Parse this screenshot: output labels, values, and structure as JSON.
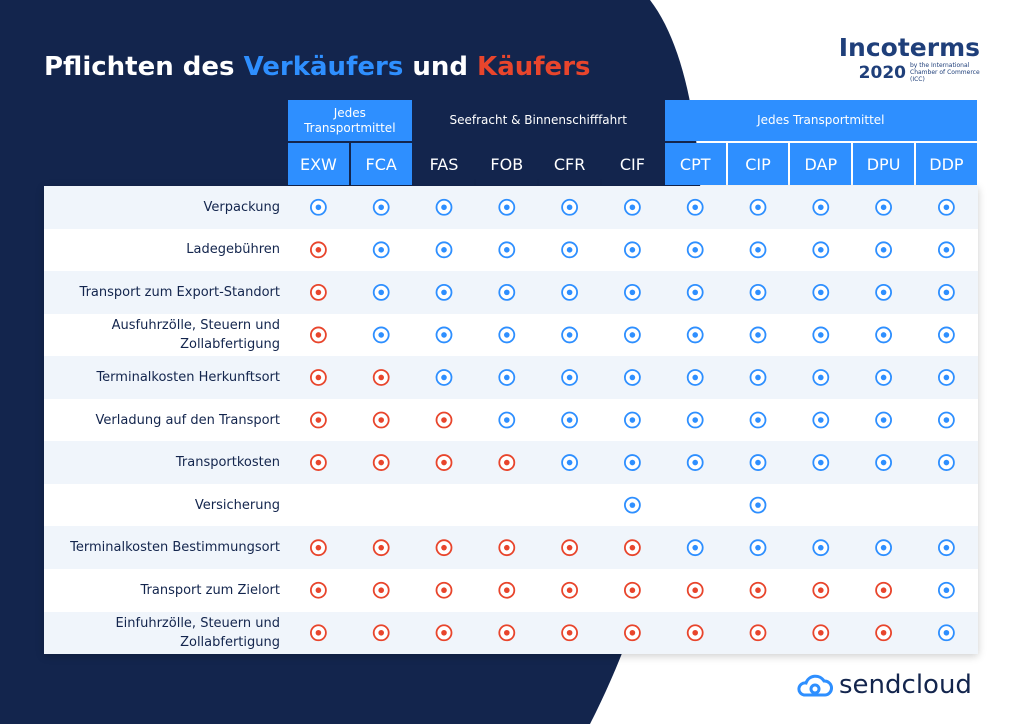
{
  "header": {
    "title": [
      {
        "text": "Pflichten des "
      },
      {
        "text": "Verkäufers",
        "color": "#2e8fff"
      },
      {
        "text": " und "
      },
      {
        "text": "Käufers",
        "color": "#e8452c"
      }
    ]
  },
  "logo": {
    "name": "Incoterms",
    "year": "2020",
    "subtitle": "by the International Chamber of Commerce (ICC)"
  },
  "table": {
    "seller_color": "#2e8fff",
    "buyer_color": "#e8452c",
    "groups": [
      {
        "label": "Jedes Transportmittel",
        "color": "#2e8fff",
        "columns": [
          "EXW",
          "FCA"
        ]
      },
      {
        "label": "Seefracht & Binnenschifffahrt",
        "color": "#13254d",
        "columns": [
          "FAS",
          "FOB",
          "CFR",
          "CIF"
        ]
      },
      {
        "label": "Jedes Transportmittel",
        "color": "#2e8fff",
        "columns": [
          "CPT",
          "CIP",
          "DAP",
          "DPU",
          "DDP"
        ]
      }
    ],
    "rows": [
      {
        "label": "Verpackung",
        "cells": [
          true,
          true,
          true,
          true,
          true,
          true,
          true,
          true,
          true,
          true,
          true
        ]
      },
      {
        "label": "Ladegebühren",
        "cells": [
          false,
          true,
          true,
          true,
          true,
          true,
          true,
          true,
          true,
          true,
          true
        ]
      },
      {
        "label": "Transport zum Export-Standort",
        "cells": [
          false,
          true,
          true,
          true,
          true,
          true,
          true,
          true,
          true,
          true,
          true
        ]
      },
      {
        "label": "Ausfuhrzölle, Steuern und Zollabfertigung",
        "cells": [
          false,
          true,
          true,
          true,
          true,
          true,
          true,
          true,
          true,
          true,
          true
        ]
      },
      {
        "label": "Terminalkosten Herkunftsort",
        "cells": [
          false,
          false,
          true,
          true,
          true,
          true,
          true,
          true,
          true,
          true,
          true
        ]
      },
      {
        "label": "Verladung auf den Transport",
        "cells": [
          false,
          false,
          false,
          true,
          true,
          true,
          true,
          true,
          true,
          true,
          true
        ]
      },
      {
        "label": "Transportkosten",
        "cells": [
          false,
          false,
          false,
          false,
          true,
          true,
          true,
          true,
          true,
          true,
          true
        ]
      },
      {
        "label": "Versicherung",
        "cells": [
          null,
          null,
          null,
          null,
          null,
          true,
          null,
          true,
          null,
          null,
          null
        ]
      },
      {
        "label": "Terminalkosten Bestimmungsort",
        "cells": [
          false,
          false,
          false,
          false,
          false,
          false,
          true,
          true,
          true,
          true,
          true
        ]
      },
      {
        "label": "Transport zum Zielort",
        "cells": [
          false,
          false,
          false,
          false,
          false,
          false,
          false,
          false,
          false,
          false,
          true
        ]
      },
      {
        "label": "Einfuhrzölle, Steuern und Zollabfertigung",
        "cells": [
          false,
          false,
          false,
          false,
          false,
          false,
          false,
          false,
          false,
          false,
          true
        ]
      }
    ]
  },
  "footer": {
    "brand": "sendcloud"
  }
}
